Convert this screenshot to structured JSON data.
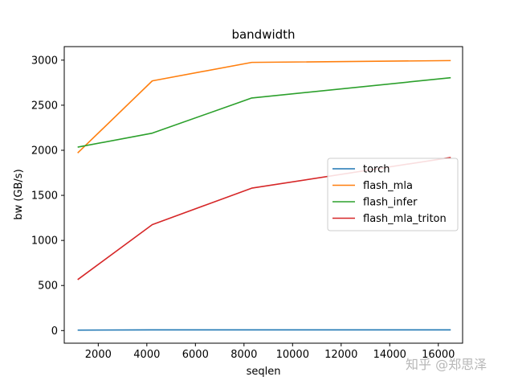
{
  "chart_data": {
    "type": "line",
    "title": "bandwidth",
    "xlabel": "seqlen",
    "ylabel": "bw (GB/s)",
    "xlim": [
      600,
      17000
    ],
    "ylim": [
      -140,
      3150
    ],
    "xticks": [
      2000,
      4000,
      6000,
      8000,
      10000,
      12000,
      14000,
      16000
    ],
    "yticks": [
      0,
      500,
      1000,
      1500,
      2000,
      2500,
      3000
    ],
    "grid": false,
    "legend_position": "center-right",
    "series": [
      {
        "name": "torch",
        "color": "#1f77b4",
        "x": [
          1152,
          4224,
          8320,
          16512
        ],
        "y": [
          5,
          8,
          8,
          8
        ]
      },
      {
        "name": "flash_mla",
        "color": "#ff7f0e",
        "x": [
          1152,
          4224,
          8320,
          16512
        ],
        "y": [
          1970,
          2770,
          2975,
          2995
        ]
      },
      {
        "name": "flash_infer",
        "color": "#2ca02c",
        "x": [
          1152,
          4224,
          8320,
          16512
        ],
        "y": [
          2035,
          2190,
          2580,
          2805
        ]
      },
      {
        "name": "flash_mla_triton",
        "color": "#d62728",
        "x": [
          1152,
          4224,
          8320,
          16512
        ],
        "y": [
          565,
          1175,
          1580,
          1920
        ]
      }
    ]
  },
  "watermark": "知乎 @郑思泽"
}
